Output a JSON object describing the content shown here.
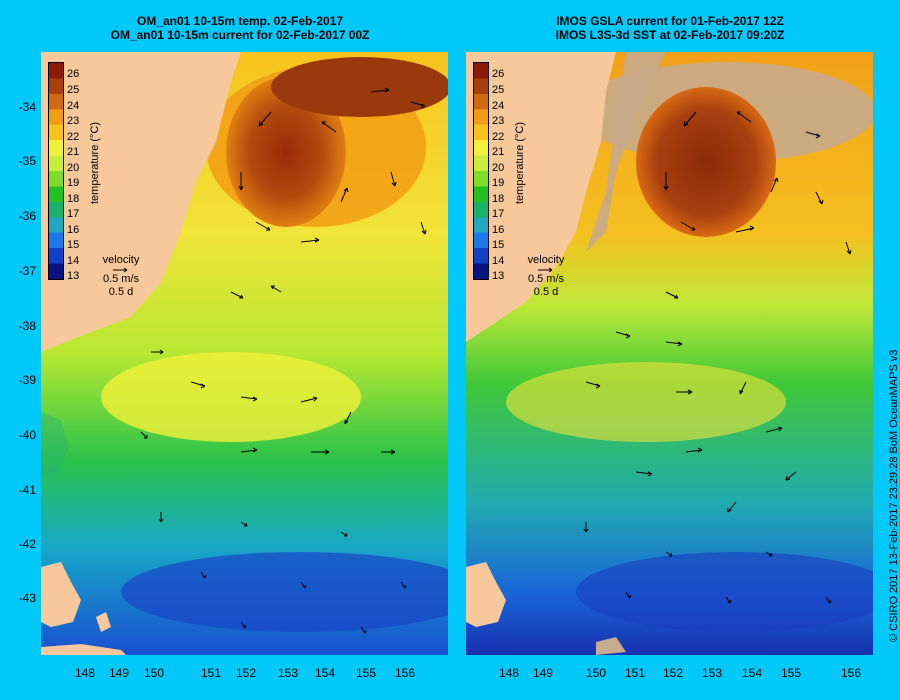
{
  "left_panel": {
    "title_line1": "OM_an01 10-15m temp. 02-Feb-2017",
    "title_line2": "OM_an01 10-15m current for 02-Feb-2017 00Z"
  },
  "right_panel": {
    "title_line1": "IMOS GSLA current for 01-Feb-2017 12Z",
    "title_line2": "IMOS L3S-3d SST at 02-Feb-2017 09:20Z"
  },
  "latitude_labels": [
    "-34",
    "-35",
    "-36",
    "-37",
    "-38",
    "-39",
    "-40",
    "-41",
    "-42",
    "-43"
  ],
  "longitude_labels": [
    "148",
    "149",
    "150",
    "151",
    "152",
    "153",
    "154",
    "155",
    "156"
  ],
  "colorbar": {
    "title": "temperature (°C)",
    "ticks": [
      "26",
      "25",
      "24",
      "23",
      "22",
      "21",
      "20",
      "19",
      "18",
      "17",
      "16",
      "15",
      "14",
      "13"
    ],
    "colors": [
      "#8a1a08",
      "#a8400c",
      "#d06a10",
      "#f29c14",
      "#f7c21e",
      "#f2f03a",
      "#c8ee3a",
      "#7fdd2a",
      "#22c020",
      "#18b26c",
      "#20a8c0",
      "#1a78e8",
      "#1440c8",
      "#0a1480"
    ]
  },
  "velocity_legend": {
    "label": "velocity",
    "speed": "0.5 m/s",
    "duration": "0.5 d"
  },
  "credit": "© CSIRO 2017   13-Feb-2017 23:29:28 BoM OceanMAPS v3",
  "colors": {
    "background": "#00c8f8",
    "land": "#f7c89c",
    "no_data": "#c8aa8c"
  }
}
